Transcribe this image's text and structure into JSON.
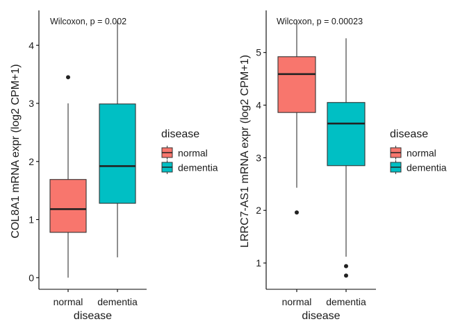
{
  "chart_data": [
    {
      "type": "boxplot",
      "annotation": "Wilcoxon, p = 0.002",
      "xlabel": "disease",
      "ylabel": "COL8A1 mRNA expr (log2 CPM+1)",
      "categories": [
        "normal",
        "dementia"
      ],
      "ylim": [
        -0.2,
        4.6
      ],
      "yticks": [
        0,
        1,
        2,
        3,
        4
      ],
      "boxes": [
        {
          "category": "normal",
          "lower_whisker": 0.0,
          "q1": 0.78,
          "median": 1.18,
          "q3": 1.69,
          "upper_whisker": 3.0,
          "outliers": [
            3.45
          ]
        },
        {
          "category": "dementia",
          "lower_whisker": 0.35,
          "q1": 1.28,
          "median": 1.92,
          "q3": 2.99,
          "upper_whisker": 4.42,
          "outliers": []
        }
      ],
      "legend": {
        "title": "disease",
        "entries": [
          "normal",
          "dementia"
        ],
        "position": "right"
      },
      "grid": false
    },
    {
      "type": "boxplot",
      "annotation": "Wilcoxon, p = 0.00023",
      "xlabel": "disease",
      "ylabel": "LRRC7-AS1 mRNA expr (log2 CPM+1)",
      "categories": [
        "normal",
        "dementia"
      ],
      "ylim": [
        0.5,
        5.8
      ],
      "yticks": [
        1,
        2,
        3,
        4,
        5
      ],
      "boxes": [
        {
          "category": "normal",
          "lower_whisker": 2.43,
          "q1": 3.86,
          "median": 4.59,
          "q3": 4.92,
          "upper_whisker": 5.62,
          "outliers": [
            1.96
          ]
        },
        {
          "category": "dementia",
          "lower_whisker": 1.12,
          "q1": 2.85,
          "median": 3.65,
          "q3": 4.05,
          "upper_whisker": 5.27,
          "outliers": [
            0.94,
            0.76
          ]
        }
      ],
      "legend": {
        "title": "disease",
        "entries": [
          "normal",
          "dementia"
        ],
        "position": "right"
      },
      "grid": false
    }
  ],
  "colors": {
    "normal": "#F8766D",
    "dementia": "#00BFC4",
    "axis": "#000000"
  }
}
